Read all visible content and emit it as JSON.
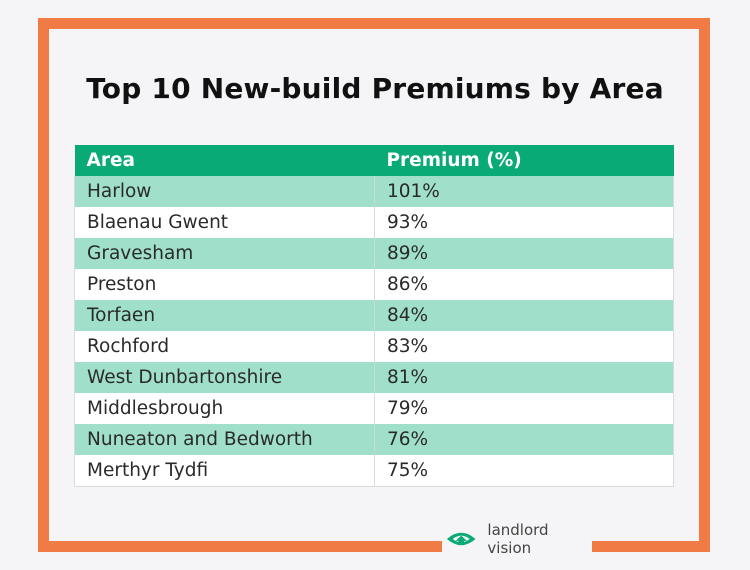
{
  "title": "Top 10 New-build Premiums by Area",
  "table": {
    "headers": [
      "Area",
      "Premium (%)"
    ],
    "rows": [
      [
        "Harlow",
        "101%"
      ],
      [
        "Blaenau Gwent",
        "93%"
      ],
      [
        "Gravesham",
        "89%"
      ],
      [
        "Preston",
        "86%"
      ],
      [
        "Torfaen",
        "84%"
      ],
      [
        "Rochford",
        "83%"
      ],
      [
        "West Dunbartonshire",
        "81%"
      ],
      [
        "Middlesbrough",
        "79%"
      ],
      [
        "Nuneaton and Bedworth",
        "76%"
      ],
      [
        "Merthyr Tydfi",
        "75%"
      ]
    ]
  },
  "logo": {
    "text": "landlord vision",
    "icon": "eye-house-logo-icon"
  },
  "colors": {
    "border": "#f07b45",
    "header": "#0aaa76",
    "row_alt": "#a0e0ca",
    "logo": "#0aaa76"
  }
}
